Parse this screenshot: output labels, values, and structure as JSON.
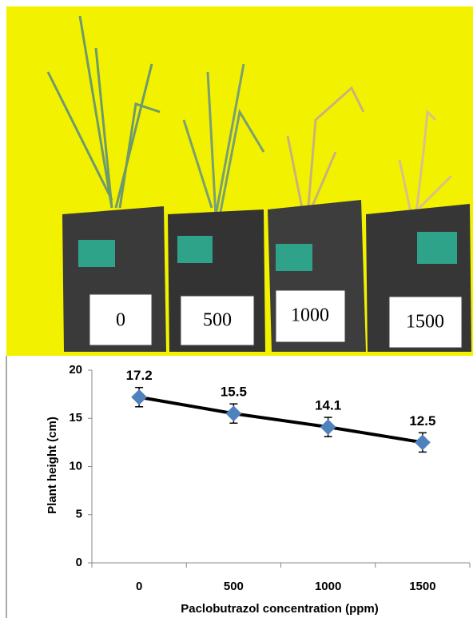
{
  "photo": {
    "labels": [
      "0",
      "500",
      "1000",
      "1500"
    ]
  },
  "chart_data": {
    "type": "line",
    "categories": [
      "0",
      "500",
      "1000",
      "1500"
    ],
    "values": [
      17.2,
      15.5,
      14.1,
      12.5
    ],
    "errors": [
      1.0,
      1.0,
      1.0,
      1.0
    ],
    "color": "#4f81bd",
    "line_color": "#000000",
    "ylim": [
      0,
      20
    ],
    "yticks": [
      0,
      5,
      10,
      15,
      20
    ],
    "ylabel": "Plant  height (cm)",
    "xlabel": "Paclobutrazol concentration (ppm)"
  }
}
